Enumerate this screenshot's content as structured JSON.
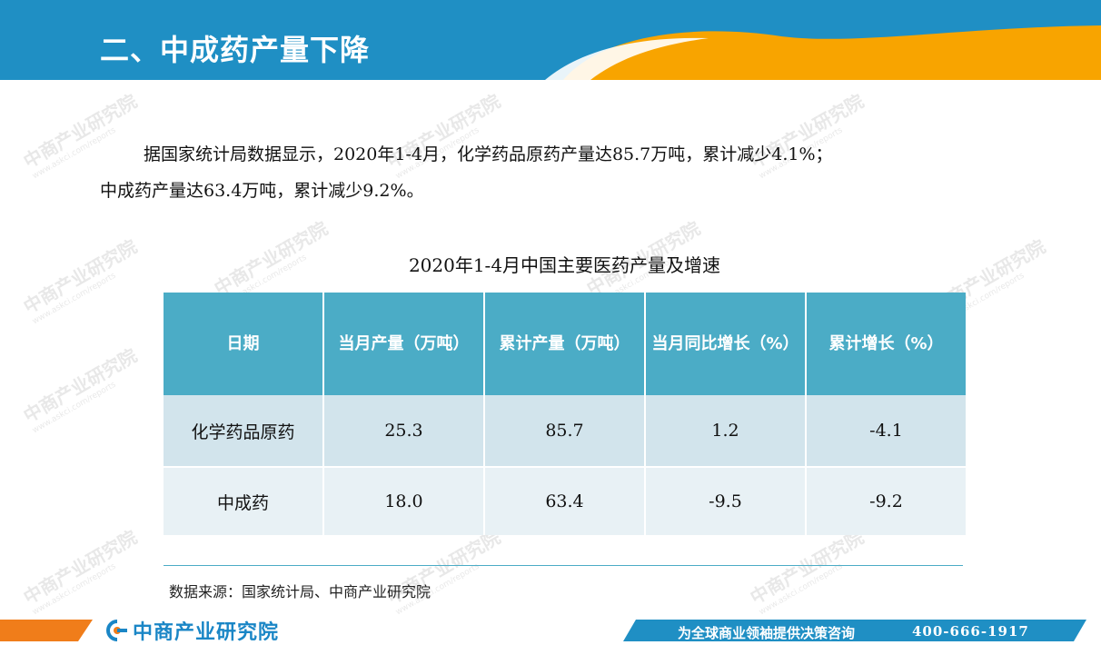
{
  "header": {
    "title": "二、中成药产量下降",
    "colors": {
      "blue": "#1f8fc4",
      "orange": "#f8a400"
    }
  },
  "intro": {
    "line1": "据国家统计局数据显示，2020年1-4月，化学药品原药产量达85.7万吨，累计减少4.1%；",
    "line2": "中成药产量达63.4万吨，累计减少9.2%。"
  },
  "table": {
    "title": "2020年1-4月中国主要医药产量及增速",
    "headers": [
      "日期",
      "当月产量（万吨）",
      "累计产量（万吨）",
      "当月同比增长（%）",
      "累计增长（%）"
    ],
    "rows": [
      [
        "化学药品原药",
        "25.3",
        "85.7",
        "1.2",
        "-4.1"
      ],
      [
        "中成药",
        "18.0",
        "63.4",
        "-9.5",
        "-9.2"
      ]
    ],
    "colors": {
      "header_bg": "#4bacc6",
      "row1_bg": "#d2e4ec",
      "row2_bg": "#e8f1f5"
    }
  },
  "source": "数据来源：国家统计局、中商产业研究院",
  "footer": {
    "logo_icon": "askci-logo-icon",
    "logo_text": "中商产业研究院",
    "slogan": "为全球商业领袖提供决策咨询",
    "phone": "400-666-1917"
  },
  "watermark": {
    "text": "中商产业研究院",
    "subtext": "www.askci.com/reports"
  }
}
